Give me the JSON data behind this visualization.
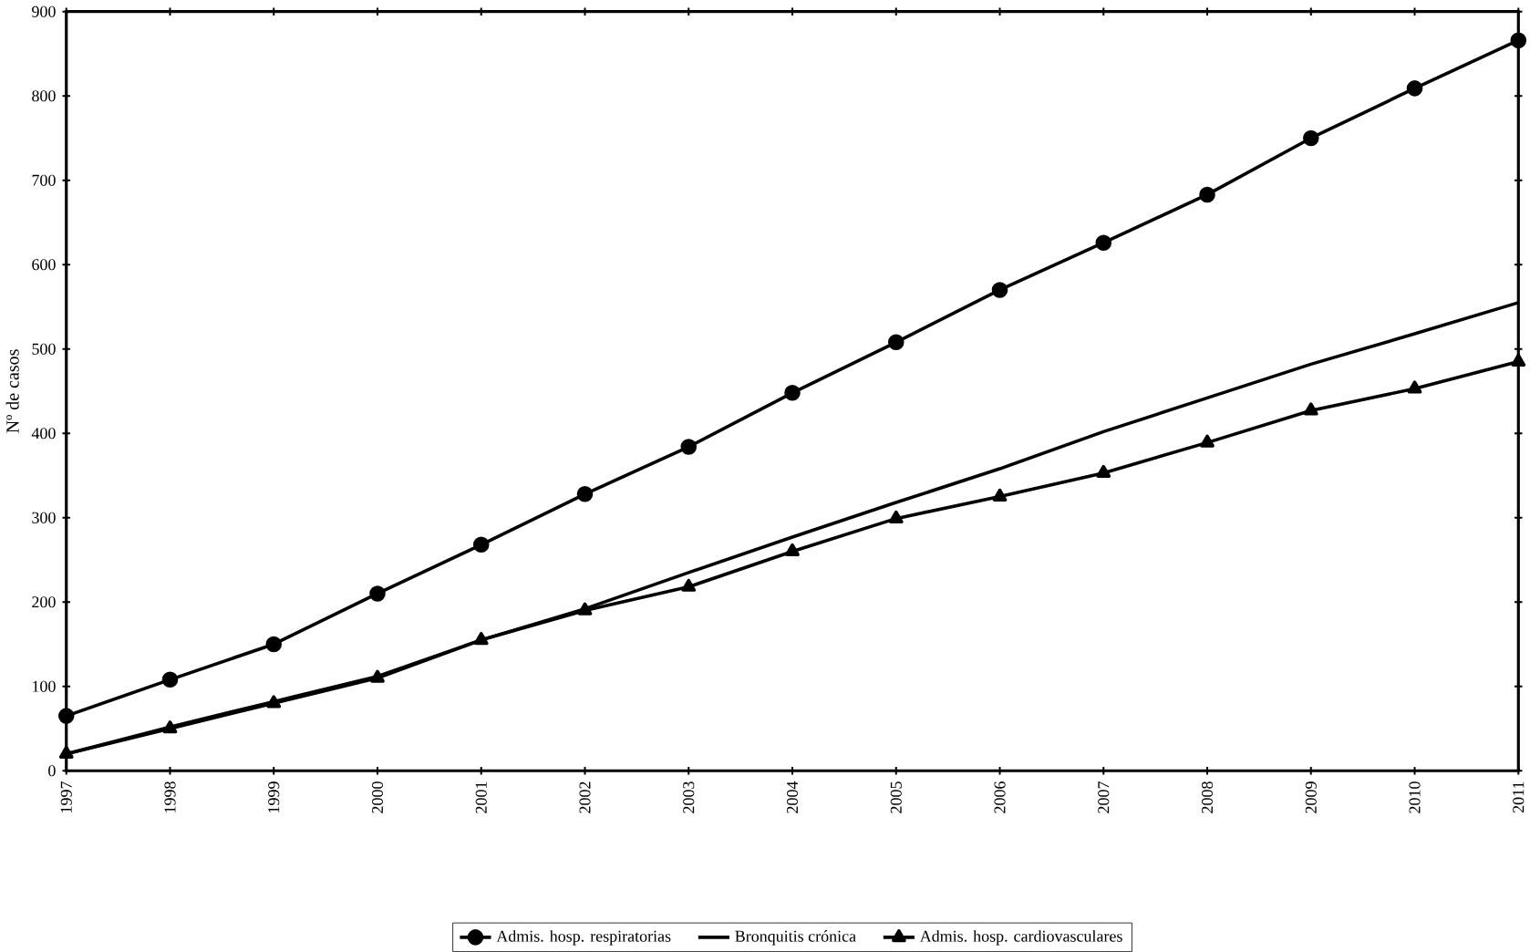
{
  "chart_data": {
    "type": "line",
    "ylabel": "Nº de casos",
    "x": [
      1997,
      1998,
      1999,
      2000,
      2001,
      2002,
      2003,
      2004,
      2005,
      2006,
      2007,
      2008,
      2009,
      2010,
      2011
    ],
    "xlim": [
      1997,
      2011
    ],
    "xticks": [
      1997,
      1998,
      1999,
      2000,
      2001,
      2002,
      2003,
      2004,
      2005,
      2006,
      2007,
      2008,
      2009,
      2010,
      2011
    ],
    "ylim": [
      0,
      900
    ],
    "yticks": [
      0,
      100,
      200,
      300,
      400,
      500,
      600,
      700,
      800,
      900
    ],
    "legend": "bottom",
    "line_style": "solid",
    "series": [
      {
        "name": "Admis. hosp. respiratorias",
        "color": "#000000",
        "marker": "circle",
        "values": [
          65,
          108,
          150,
          210,
          268,
          328,
          384,
          448,
          508,
          570,
          626,
          683,
          750,
          809,
          866
        ]
      },
      {
        "name": "Bronquitis crónica",
        "color": "#000000",
        "marker": "none",
        "values": [
          20,
          52,
          82,
          112,
          155,
          192,
          235,
          277,
          318,
          358,
          402,
          442,
          482,
          518,
          555
        ]
      },
      {
        "name": "Admis. hosp. cardiovasculares",
        "color": "#000000",
        "marker": "triangle",
        "values": [
          20,
          50,
          80,
          110,
          155,
          190,
          218,
          260,
          299,
          325,
          353,
          389,
          427,
          453,
          485
        ]
      }
    ]
  }
}
